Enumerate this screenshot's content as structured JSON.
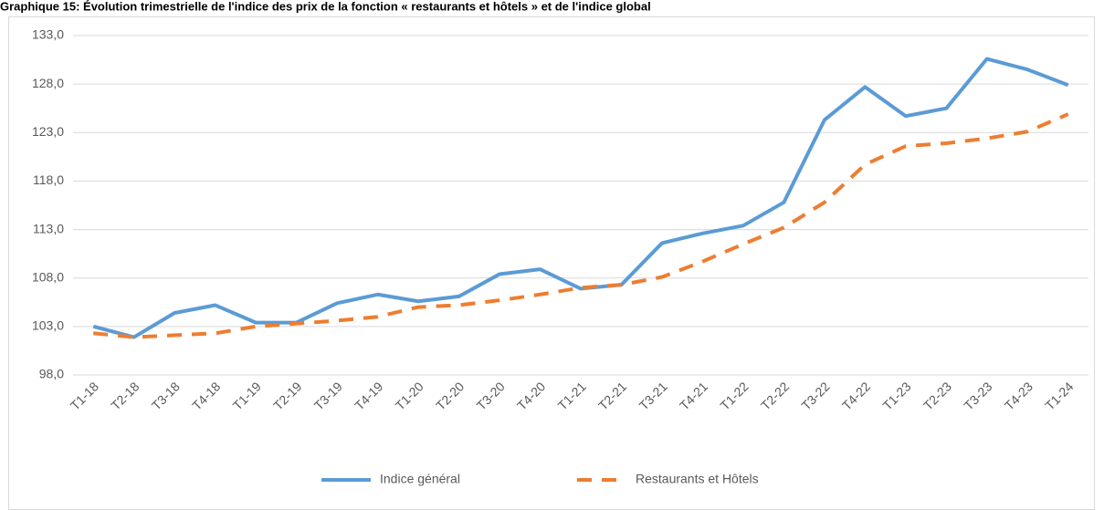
{
  "chart_data": {
    "type": "line",
    "title": "Graphique 15: Évolution trimestrielle de l'indice des prix de la fonction « restaurants et hôtels » et de l'indice global",
    "categories": [
      "T1-18",
      "T2-18",
      "T3-18",
      "T4-18",
      "T1-19",
      "T2-19",
      "T3-19",
      "T4-19",
      "T1-20",
      "T2-20",
      "T3-20",
      "T4-20",
      "T1-21",
      "T2-21",
      "T3-21",
      "T4-21",
      "T1-22",
      "T2-22",
      "T3-22",
      "T4-22",
      "T1-23",
      "T2-23",
      "T3-23",
      "T4-23",
      "T1-24"
    ],
    "series": [
      {
        "name": "Indice général",
        "color": "#5b9bd5",
        "dashed": false,
        "values": [
          103.0,
          101.9,
          104.4,
          105.2,
          103.4,
          103.4,
          105.4,
          106.3,
          105.6,
          106.1,
          108.4,
          108.9,
          106.9,
          107.3,
          111.6,
          112.6,
          113.4,
          115.8,
          124.3,
          127.7,
          124.7,
          125.5,
          130.6,
          129.5,
          127.9
        ]
      },
      {
        "name": "Restaurants et Hôtels",
        "color": "#ed7d31",
        "dashed": true,
        "values": [
          102.3,
          101.9,
          102.1,
          102.3,
          103.0,
          103.3,
          103.6,
          104.0,
          105.0,
          105.2,
          105.7,
          106.3,
          107.0,
          107.3,
          108.1,
          109.7,
          111.5,
          113.2,
          115.8,
          119.7,
          121.6,
          121.9,
          122.4,
          123.1,
          124.9
        ]
      }
    ],
    "ylim": [
      98,
      133
    ],
    "yticks": [
      {
        "value": 98,
        "label": "98,0"
      },
      {
        "value": 103,
        "label": "103,0"
      },
      {
        "value": 108,
        "label": "108,0"
      },
      {
        "value": 113,
        "label": "113,0"
      },
      {
        "value": 118,
        "label": "118,0"
      },
      {
        "value": 123,
        "label": "123,0"
      },
      {
        "value": 128,
        "label": "128,0"
      },
      {
        "value": 133,
        "label": "133,0"
      }
    ],
    "grid": true,
    "legend": "bottom"
  }
}
